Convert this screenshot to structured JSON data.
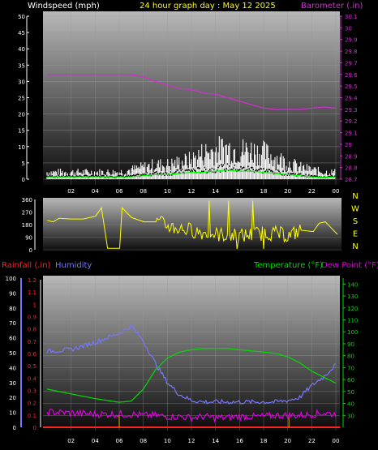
{
  "header": {
    "wind_label": "Windspeed (mph)",
    "title": "24 hour graph day : May 12 2025",
    "baro_label": "Barometer (.in)"
  },
  "lower_header": {
    "rain_label": "Rainfall (.in)",
    "humidity_label": "Humidity",
    "temp_label": "Temperature (°F)",
    "dew_label": "Dew Point (°F)"
  },
  "colors": {
    "wind": "#ffffff",
    "gust": "#ffffff",
    "baro": "#cc33cc",
    "dir": "#ffff00",
    "humidity": "#7777ff",
    "temp": "#00dd00",
    "dew": "#dd00dd",
    "rain": "#ff2222",
    "accent_yellow": "#ffff00",
    "wind_green": "#00ff00"
  },
  "chart_data": [
    {
      "type": "line",
      "name": "wind-baro",
      "x_ticks": [
        "02",
        "04",
        "06",
        "08",
        "10",
        "12",
        "14",
        "16",
        "18",
        "20",
        "22",
        "00"
      ],
      "y_left": {
        "label": "Windspeed (mph)",
        "ticks": [
          0,
          5,
          10,
          15,
          20,
          25,
          30,
          35,
          40,
          45,
          50
        ],
        "ylim": [
          0,
          50
        ]
      },
      "y_right": {
        "label": "Barometer (.in)",
        "ticks": [
          "28.7",
          "28.8",
          "28.9",
          "29",
          "29.1",
          "29.2",
          "29.3",
          "29.4",
          "29.5",
          "29.6",
          "29.7",
          "29.8",
          "29.9",
          "30",
          "30.1"
        ],
        "ylim": [
          28.7,
          30.1
        ]
      },
      "x_hours": [
        0,
        2,
        4,
        6,
        7,
        8,
        9,
        10,
        11,
        12,
        13,
        14,
        15,
        16,
        17,
        18,
        19,
        20,
        21,
        22,
        23,
        24
      ],
      "baro": [
        29.6,
        29.6,
        29.6,
        29.6,
        29.6,
        29.58,
        29.54,
        29.51,
        29.48,
        29.47,
        29.44,
        29.43,
        29.4,
        29.37,
        29.34,
        29.31,
        29.3,
        29.3,
        29.3,
        29.31,
        29.32,
        29.31
      ],
      "wind_avg": [
        1,
        1,
        1,
        1,
        1,
        1.5,
        2,
        2,
        2.5,
        3,
        3,
        3.5,
        4,
        3.5,
        3.5,
        3,
        2.5,
        2,
        1.5,
        1,
        0.8,
        1
      ],
      "wind_gust": [
        3,
        3,
        3,
        3,
        4,
        5,
        6,
        6,
        7,
        8,
        11,
        12,
        13,
        12,
        12,
        11,
        9,
        7,
        5,
        4,
        3,
        3
      ]
    },
    {
      "type": "scatter",
      "name": "wind-direction",
      "y_ticks": [
        "360",
        "270",
        "180",
        "90",
        "0"
      ],
      "ylim": [
        0,
        360
      ],
      "compass": [
        "N",
        "W",
        "S",
        "E",
        "N"
      ],
      "x_hours": [
        0,
        0.5,
        1,
        2,
        3,
        4,
        4.5,
        5,
        5.5,
        6,
        6.2,
        7,
        8,
        9,
        10,
        11,
        12,
        13,
        14,
        15,
        16,
        17,
        18,
        19,
        20,
        21,
        22,
        22.5,
        23,
        24
      ],
      "direction": [
        210,
        200,
        225,
        220,
        220,
        240,
        300,
        10,
        10,
        10,
        300,
        230,
        200,
        200,
        170,
        150,
        140,
        120,
        110,
        105,
        100,
        110,
        120,
        115,
        100,
        140,
        130,
        190,
        200,
        110
      ]
    },
    {
      "type": "line",
      "name": "temp-humidity",
      "y_humidity": {
        "label": "Humidity",
        "ticks": [
          0,
          10,
          20,
          30,
          40,
          50,
          60,
          70,
          80,
          90,
          100
        ],
        "ylim": [
          0,
          100
        ]
      },
      "y_rain": {
        "label": "Rainfall (.in)",
        "ticks": [
          "0",
          "0.1",
          "0.2",
          "0.3",
          "0.4",
          "0.5",
          "0.6",
          "0.7",
          "0.8",
          "0.9",
          "1",
          "1.1",
          "1.2"
        ],
        "ylim": [
          0,
          1.2
        ]
      },
      "y_temp": {
        "label": "Temperature (°F)",
        "ticks": [
          30,
          40,
          50,
          60,
          70,
          80,
          90,
          100,
          110,
          120,
          130,
          140
        ],
        "ylim": [
          20,
          145
        ]
      },
      "x_hours": [
        0,
        2,
        4,
        6,
        7,
        8,
        9,
        10,
        11,
        12,
        13,
        14,
        15,
        16,
        17,
        18,
        19,
        20,
        21,
        22,
        23,
        24
      ],
      "humidity": [
        51,
        52,
        57,
        63,
        68,
        58,
        43,
        30,
        22,
        18,
        17,
        17,
        17,
        17,
        17,
        17,
        17,
        18,
        20,
        28,
        34,
        42
      ],
      "temperature": [
        52,
        48,
        44,
        41,
        42,
        52,
        68,
        78,
        83,
        85,
        86,
        86,
        86,
        85,
        84,
        83,
        82,
        79,
        74,
        67,
        62,
        57
      ],
      "dew_point": [
        33,
        32,
        31,
        31,
        31,
        30,
        30,
        29,
        29,
        28,
        29,
        28,
        28,
        29,
        29,
        29,
        30,
        30,
        30,
        31,
        32,
        31
      ],
      "rainfall": [
        0,
        0,
        0,
        0,
        0,
        0,
        0,
        0,
        0,
        0,
        0,
        0,
        0,
        0,
        0,
        0,
        0,
        0,
        0,
        0,
        0,
        0
      ]
    }
  ]
}
